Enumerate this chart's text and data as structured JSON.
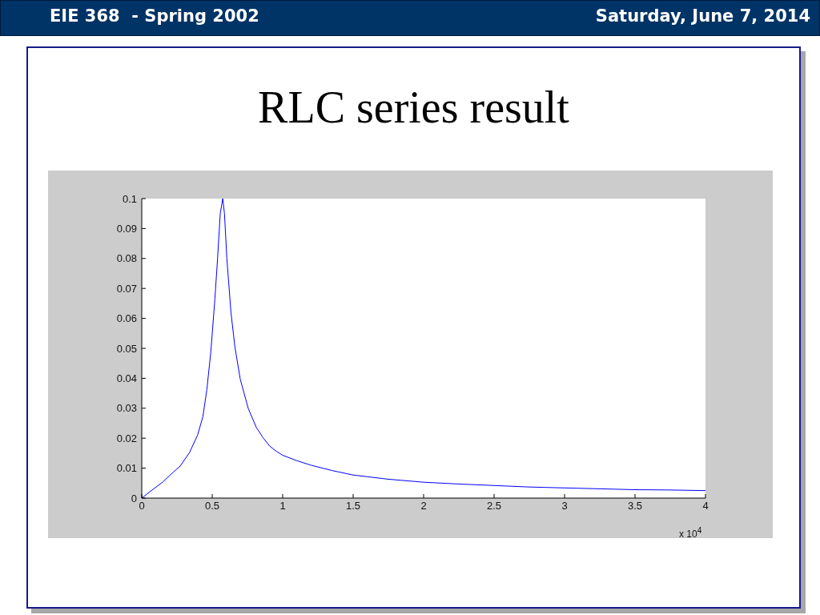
{
  "chart_data": {
    "type": "line",
    "title": "RLC series result",
    "annotations": [
      "EIE 368  - Spring 2002",
      "Saturday, June 7, 2014",
      "x 10$^{4}$"
    ],
    "x": [
      0,
      0.074,
      0.15,
      0.225,
      0.273,
      0.339,
      0.396,
      0.434,
      0.462,
      0.49,
      0.519,
      0.538,
      0.557,
      0.575,
      0.587,
      0.604,
      0.633,
      0.661,
      0.699,
      0.756,
      0.812,
      0.86,
      0.907,
      0.95,
      1,
      1.1,
      1.2,
      1.35,
      1.5,
      1.75,
      2,
      2.25,
      2.5,
      2.75,
      3,
      3.25,
      3.5,
      3.75,
      4
    ],
    "values": [
      0,
      0.0027,
      0.0054,
      0.0087,
      0.0107,
      0.0152,
      0.021,
      0.0272,
      0.0362,
      0.0487,
      0.0665,
      0.08,
      0.095,
      0.1,
      0.095,
      0.08,
      0.062,
      0.0505,
      0.0397,
      0.0299,
      0.0237,
      0.0202,
      0.0174,
      0.0158,
      0.0143,
      0.0125,
      0.011,
      0.0092,
      0.0077,
      0.0063,
      0.0053,
      0.0047,
      0.0042,
      0.0037,
      0.0034,
      0.0031,
      0.0028,
      0.0027,
      0.0025
    ],
    "color": "#0000ff",
    "xlim": [
      0,
      4
    ],
    "xticks": [
      0,
      0.5,
      1,
      1.5,
      2,
      2.5,
      3,
      3.5,
      4
    ],
    "ylim": [
      0,
      0.1
    ],
    "yticks": [
      0,
      0.01,
      0.02,
      0.03,
      0.04,
      0.05,
      0.06,
      0.07,
      0.08,
      0.09,
      0.1
    ]
  }
}
